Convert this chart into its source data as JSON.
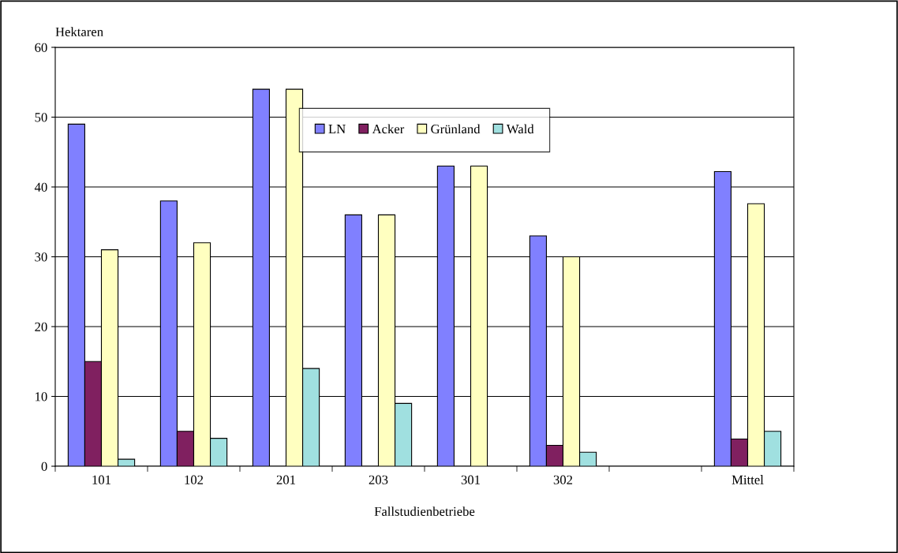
{
  "chart_data": {
    "type": "bar",
    "ylabel": "Hektaren",
    "xlabel": "Fallstudienbetriebe",
    "categories": [
      "101",
      "102",
      "201",
      "203",
      "301",
      "302",
      null,
      "Mittel"
    ],
    "series": [
      {
        "name": "LN",
        "color": "#8080ff",
        "values": [
          49,
          38,
          54,
          36,
          43,
          33,
          null,
          42.2
        ]
      },
      {
        "name": "Acker",
        "color": "#802060",
        "values": [
          15,
          5,
          null,
          null,
          null,
          3,
          null,
          3.9
        ]
      },
      {
        "name": "Grünland",
        "color": "#ffffc0",
        "values": [
          31,
          32,
          54,
          36,
          43,
          30,
          null,
          37.6
        ]
      },
      {
        "name": "Wald",
        "color": "#a0e0e0",
        "values": [
          1,
          4,
          14,
          9,
          null,
          2,
          null,
          5
        ]
      }
    ],
    "ylim": [
      0,
      60
    ],
    "yticks": [
      0,
      10,
      20,
      30,
      40,
      50,
      60
    ],
    "grid": "y",
    "legend": "top"
  }
}
